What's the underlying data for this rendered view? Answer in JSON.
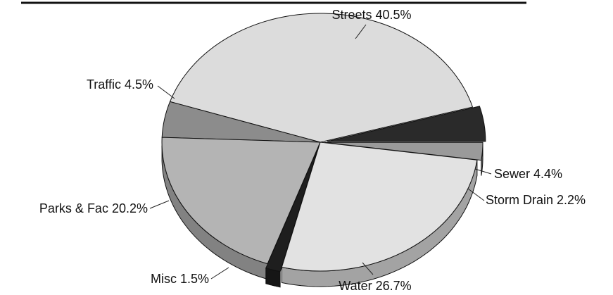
{
  "chart_data": {
    "type": "pie",
    "style": "3d-exploded",
    "slices": [
      {
        "label": "Sewer",
        "value": 4.4,
        "display": "Sewer 4.4%",
        "color": "#2a2a2a"
      },
      {
        "label": "Streets",
        "value": 40.5,
        "display": "Streets 40.5%",
        "color": "#dcdcdc"
      },
      {
        "label": "Traffic",
        "value": 4.5,
        "display": "Traffic 4.5%",
        "color": "#8c8c8c"
      },
      {
        "label": "Parks & Fac",
        "value": 20.2,
        "display": "Parks & Fac 20.2%",
        "color": "#b4b4b4"
      },
      {
        "label": "Misc",
        "value": 1.5,
        "display": "Misc 1.5%",
        "color": "#1e1e1e"
      },
      {
        "label": "Water",
        "value": 26.7,
        "display": "Water 26.7%",
        "color": "#e2e2e2"
      },
      {
        "label": "Storm Drain",
        "value": 2.2,
        "display": "Storm Drain 2.2%",
        "color": "#9a9a9a"
      }
    ],
    "legend": "none",
    "unit": "%"
  }
}
